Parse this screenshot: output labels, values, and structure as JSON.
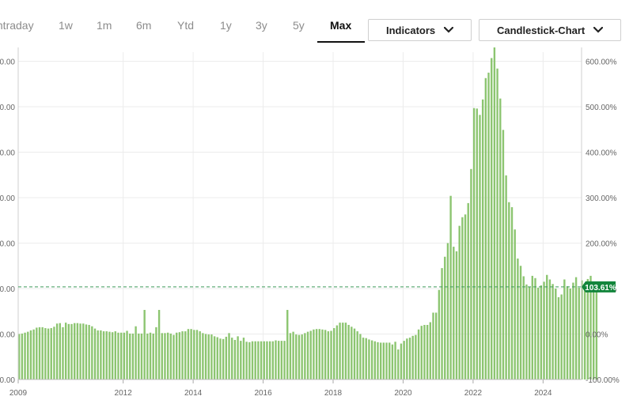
{
  "toolbar": {
    "tabs": [
      {
        "label": "Intraday",
        "active": false
      },
      {
        "label": "1w",
        "active": false
      },
      {
        "label": "1m",
        "active": false
      },
      {
        "label": "6m",
        "active": false
      },
      {
        "label": "Ytd",
        "active": false
      },
      {
        "label": "1y",
        "active": false
      },
      {
        "label": "3y",
        "active": false
      },
      {
        "label": "5y",
        "active": false
      },
      {
        "label": "Max",
        "active": true
      }
    ],
    "indicators_label": "Indicators",
    "chart_type_label": "Candlestick-Chart",
    "chevron_icon": "chevron-down-icon"
  },
  "chart_data": {
    "type": "bar",
    "color": "#8cc570",
    "bar_edge_color": "#5ea53f",
    "reference_line_color": "#3d9b5a",
    "badge_color": "#12853b",
    "current_value": 103.61,
    "current_label": "103.61%",
    "x_start": 2009.0,
    "x_end": 2025.1,
    "x_ticks": [
      {
        "value": 2009,
        "label": "2009"
      },
      {
        "value": 2012,
        "label": "2012"
      },
      {
        "value": 2014,
        "label": "2014"
      },
      {
        "value": 2016,
        "label": "2016"
      },
      {
        "value": 2018,
        "label": "2018"
      },
      {
        "value": 2020,
        "label": "2020"
      },
      {
        "value": 2022,
        "label": "2022"
      },
      {
        "value": 2024,
        "label": "2024"
      }
    ],
    "right_axis": {
      "ylim": [
        -100,
        620
      ],
      "ticks": [
        {
          "value": -100,
          "label": "-100.00%"
        },
        {
          "value": 0,
          "label": "0.00%"
        },
        {
          "value": 100,
          "label": "100.00%"
        },
        {
          "value": 200,
          "label": "200.00%"
        },
        {
          "value": 300,
          "label": "300.00%"
        },
        {
          "value": 400,
          "label": "400.00%"
        },
        {
          "value": 500,
          "label": "500.00%"
        },
        {
          "value": 600,
          "label": "600.00%"
        }
      ]
    },
    "left_axis_labels": [
      "0.00",
      "0.00",
      "0.00",
      "0.00",
      "0.00",
      "0.00",
      "0.00",
      "0.00"
    ],
    "grid": true,
    "series": [
      {
        "x_start": 2009.0,
        "step_years": 0.0833333,
        "values": [
          0,
          1,
          3,
          5,
          8,
          10,
          14,
          15,
          15,
          13,
          12,
          13,
          16,
          23,
          24,
          15,
          25,
          22,
          22,
          24,
          24,
          23,
          23,
          21,
          20,
          17,
          12,
          8,
          8,
          6,
          6,
          5,
          4,
          6,
          3,
          3,
          3,
          7,
          1,
          1,
          17,
          1,
          1,
          53,
          1,
          3,
          1,
          15,
          53,
          2,
          2,
          3,
          1,
          -2,
          3,
          4,
          6,
          6,
          11,
          11,
          9,
          9,
          6,
          2,
          0,
          -1,
          -1,
          -5,
          -7,
          -10,
          -11,
          -6,
          2,
          -8,
          -13,
          -5,
          -15,
          -8,
          -17,
          -18,
          -16,
          -16,
          -16,
          -16,
          -16,
          -16,
          -16,
          -16,
          -14,
          -15,
          -15,
          -15,
          53,
          2,
          5,
          -1,
          -2,
          -1,
          2,
          5,
          7,
          10,
          11,
          11,
          10,
          9,
          6,
          7,
          13,
          19,
          25,
          25,
          25,
          20,
          16,
          12,
          6,
          0,
          -8,
          -9,
          -12,
          -14,
          -16,
          -18,
          -19,
          -19,
          -19,
          -19,
          -23,
          -17,
          -34,
          -21,
          -15,
          -10,
          -8,
          -4,
          -2,
          10,
          18,
          20,
          20,
          26,
          47,
          47,
          97,
          145,
          170,
          200,
          304,
          192,
          182,
          238,
          257,
          263,
          288,
          363,
          497,
          496,
          482,
          516,
          563,
          575,
          607,
          635,
          584,
          518,
          449,
          349,
          290,
          279,
          230,
          166,
          150,
          127,
          109,
          104,
          128,
          123,
          102,
          107,
          115,
          130,
          120,
          110,
          100,
          81,
          87,
          120,
          105,
          100,
          113,
          125,
          102,
          118,
          111,
          121,
          128,
          101,
          110
        ]
      }
    ]
  }
}
